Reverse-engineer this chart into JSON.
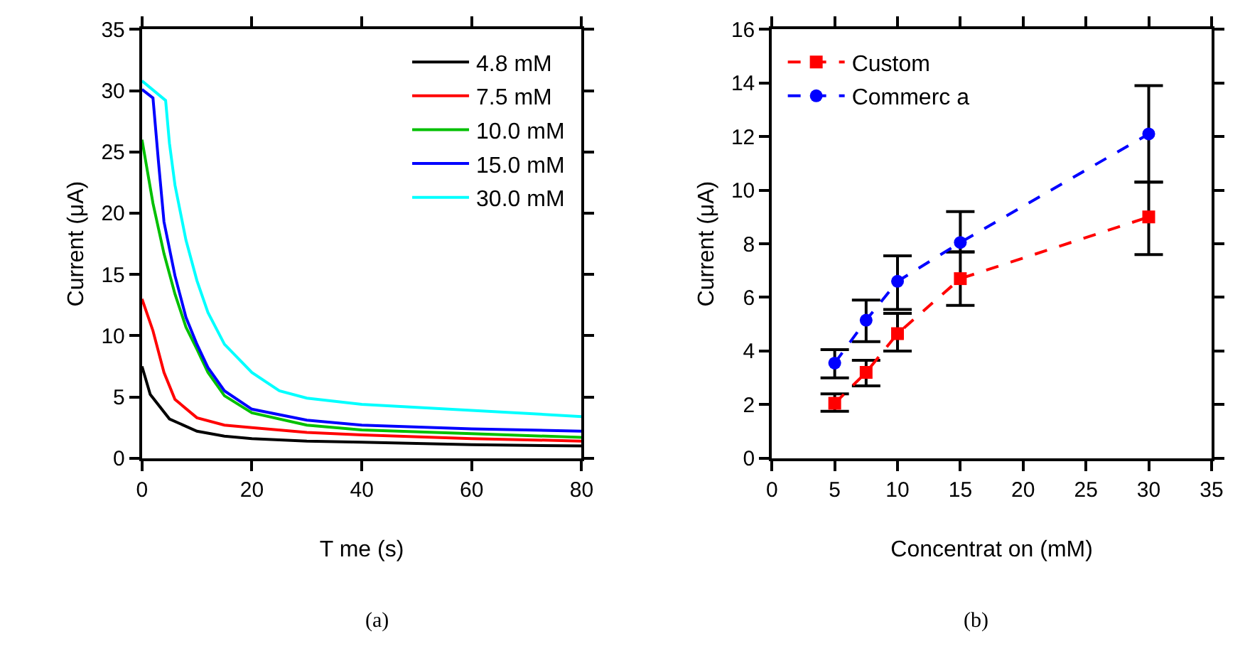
{
  "chart_data": [
    {
      "type": "line",
      "xlabel": "T me (s)",
      "ylabel": "Current (μA)",
      "xlim": [
        0,
        80
      ],
      "xticks": [
        0,
        20,
        40,
        60,
        80
      ],
      "ylim": [
        0,
        35
      ],
      "yticks": [
        0,
        5,
        10,
        15,
        20,
        25,
        30,
        35
      ],
      "legend": "top right",
      "marker": "none",
      "line_style": "solid",
      "annotations": [
        "(a)"
      ],
      "series": [
        {
          "name": "4.8 mM",
          "color": "#000000",
          "x": [
            0,
            1.5,
            5,
            10,
            15,
            20,
            30,
            40,
            60,
            80
          ],
          "values": [
            7.5,
            5.2,
            3.2,
            2.2,
            1.8,
            1.6,
            1.4,
            1.3,
            1.1,
            1.0
          ]
        },
        {
          "name": "7.5 mM",
          "color": "#ff0000",
          "x": [
            0,
            2,
            4,
            6,
            10,
            15,
            20,
            30,
            40,
            60,
            80
          ],
          "values": [
            13,
            10.4,
            7.0,
            4.8,
            3.3,
            2.7,
            2.5,
            2.1,
            1.9,
            1.6,
            1.4
          ]
        },
        {
          "name": "10.0 mM",
          "color": "#00c000",
          "x": [
            0,
            2,
            4,
            6,
            8,
            10,
            12,
            15,
            20,
            30,
            40,
            60,
            80
          ],
          "values": [
            26,
            20.8,
            16.7,
            13.4,
            10.7,
            8.9,
            7.0,
            5.1,
            3.7,
            2.7,
            2.3,
            2.0,
            1.7
          ]
        },
        {
          "name": "15.0 mM",
          "color": "#0000ff",
          "x": [
            0,
            2,
            3,
            4,
            6,
            8,
            10,
            12,
            15,
            20,
            30,
            40,
            60,
            80
          ],
          "values": [
            30.1,
            29.4,
            24.2,
            19.3,
            14.9,
            11.5,
            9.3,
            7.4,
            5.5,
            4.0,
            3.1,
            2.7,
            2.4,
            2.2
          ]
        },
        {
          "name": "30.0 mM",
          "color": "#00ffff",
          "x": [
            0,
            4.3,
            5,
            6,
            8,
            10,
            12,
            15,
            20,
            25,
            30,
            40,
            60,
            80
          ],
          "values": [
            30.8,
            29.2,
            25.7,
            22.3,
            17.8,
            14.5,
            11.9,
            9.3,
            7.0,
            5.5,
            4.9,
            4.4,
            3.9,
            3.4
          ]
        }
      ]
    },
    {
      "type": "line",
      "xlabel": "Concentrat on (mM)",
      "ylabel": "Current (μA)",
      "xlim": [
        0,
        35
      ],
      "xticks": [
        0,
        5,
        10,
        15,
        20,
        25,
        30,
        35
      ],
      "ylim": [
        0,
        16
      ],
      "yticks": [
        0,
        2,
        4,
        6,
        8,
        10,
        12,
        14,
        16
      ],
      "legend": "top left",
      "line_style": "dashed",
      "annotations": [
        "(b)"
      ],
      "series": [
        {
          "name": "Custom",
          "color": "#ff0000",
          "marker": "square",
          "x": [
            5,
            7.5,
            10,
            15,
            30
          ],
          "values": [
            2.05,
            3.2,
            4.65,
            6.7,
            9.0
          ],
          "errors": [
            [
              1.75,
              2.4
            ],
            [
              2.7,
              3.65
            ],
            [
              4.0,
              5.4
            ],
            [
              5.7,
              7.7
            ],
            [
              7.6,
              10.3
            ]
          ]
        },
        {
          "name": "Commerc a",
          "color": "#0000ff",
          "marker": "circle",
          "x": [
            5,
            7.5,
            10,
            15,
            30
          ],
          "values": [
            3.55,
            5.15,
            6.6,
            8.05,
            12.1
          ],
          "errors": [
            [
              3.0,
              4.05
            ],
            [
              4.35,
              5.9
            ],
            [
              5.55,
              7.55
            ],
            [
              7.7,
              9.2
            ],
            [
              10.3,
              13.9
            ]
          ]
        }
      ]
    }
  ]
}
